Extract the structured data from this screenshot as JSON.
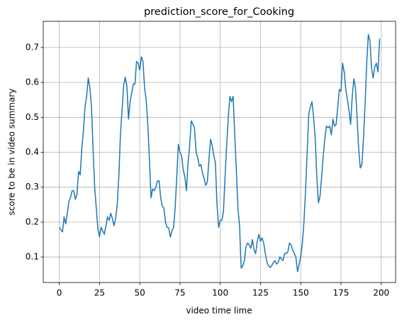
{
  "chart_data": {
    "type": "line",
    "title": "prediction_score_for_Cooking",
    "xlabel": "video time lime",
    "ylabel": "score to be in video summary",
    "x": [
      0,
      1,
      2,
      3,
      4,
      5,
      6,
      7,
      8,
      9,
      10,
      11,
      12,
      13,
      14,
      15,
      16,
      17,
      18,
      19,
      20,
      21,
      22,
      23,
      24,
      25,
      26,
      27,
      28,
      29,
      30,
      31,
      32,
      33,
      34,
      35,
      36,
      37,
      38,
      39,
      40,
      41,
      42,
      43,
      44,
      45,
      46,
      47,
      48,
      49,
      50,
      51,
      52,
      53,
      54,
      55,
      56,
      57,
      58,
      59,
      60,
      61,
      62,
      63,
      64,
      65,
      66,
      67,
      68,
      69,
      70,
      71,
      72,
      73,
      74,
      75,
      76,
      77,
      78,
      79,
      80,
      81,
      82,
      83,
      84,
      85,
      86,
      87,
      88,
      89,
      90,
      91,
      92,
      93,
      94,
      95,
      96,
      97,
      98,
      99,
      100,
      101,
      102,
      103,
      104,
      105,
      106,
      107,
      108,
      109,
      110,
      111,
      112,
      113,
      114,
      115,
      116,
      117,
      118,
      119,
      120,
      121,
      122,
      123,
      124,
      125,
      126,
      127,
      128,
      129,
      130,
      131,
      132,
      133,
      134,
      135,
      136,
      137,
      138,
      139,
      140,
      141,
      142,
      143,
      144,
      145,
      146,
      147,
      148,
      149,
      150,
      151,
      152,
      153,
      154,
      155,
      156,
      157,
      158,
      159,
      160,
      161,
      162,
      163,
      164,
      165,
      166,
      167,
      168,
      169,
      170,
      171,
      172,
      173,
      174,
      175,
      176,
      177,
      178,
      179,
      180,
      181,
      182,
      183,
      184,
      185,
      186,
      187,
      188,
      189,
      190,
      191,
      192,
      193,
      194,
      195,
      196,
      197,
      198,
      199
    ],
    "series": [
      {
        "color": "#1f77b4",
        "values": [
          0.185,
          0.178,
          0.172,
          0.215,
          0.195,
          0.225,
          0.26,
          0.27,
          0.29,
          0.29,
          0.265,
          0.28,
          0.345,
          0.335,
          0.41,
          0.46,
          0.53,
          0.56,
          0.613,
          0.585,
          0.53,
          0.41,
          0.3,
          0.24,
          0.18,
          0.158,
          0.185,
          0.175,
          0.165,
          0.19,
          0.215,
          0.205,
          0.225,
          0.21,
          0.19,
          0.21,
          0.25,
          0.33,
          0.45,
          0.52,
          0.59,
          0.615,
          0.59,
          0.495,
          0.545,
          0.57,
          0.595,
          0.595,
          0.66,
          0.655,
          0.635,
          0.673,
          0.66,
          0.585,
          0.55,
          0.48,
          0.38,
          0.27,
          0.295,
          0.29,
          0.3,
          0.318,
          0.318,
          0.27,
          0.245,
          0.24,
          0.2,
          0.185,
          0.183,
          0.157,
          0.175,
          0.185,
          0.24,
          0.33,
          0.423,
          0.4,
          0.39,
          0.35,
          0.33,
          0.29,
          0.37,
          0.42,
          0.49,
          0.48,
          0.47,
          0.4,
          0.385,
          0.36,
          0.365,
          0.34,
          0.325,
          0.305,
          0.315,
          0.38,
          0.437,
          0.42,
          0.39,
          0.37,
          0.25,
          0.185,
          0.205,
          0.205,
          0.23,
          0.33,
          0.42,
          0.5,
          0.56,
          0.545,
          0.56,
          0.45,
          0.35,
          0.24,
          0.19,
          0.068,
          0.075,
          0.09,
          0.13,
          0.14,
          0.135,
          0.125,
          0.15,
          0.12,
          0.11,
          0.145,
          0.165,
          0.145,
          0.155,
          0.14,
          0.11,
          0.085,
          0.075,
          0.07,
          0.075,
          0.085,
          0.09,
          0.08,
          0.085,
          0.1,
          0.095,
          0.09,
          0.11,
          0.11,
          0.115,
          0.14,
          0.135,
          0.12,
          0.11,
          0.1,
          0.058,
          0.08,
          0.1,
          0.14,
          0.2,
          0.29,
          0.4,
          0.51,
          0.53,
          0.545,
          0.5,
          0.44,
          0.33,
          0.255,
          0.275,
          0.33,
          0.39,
          0.44,
          0.475,
          0.47,
          0.475,
          0.45,
          0.495,
          0.475,
          0.48,
          0.53,
          0.58,
          0.575,
          0.655,
          0.63,
          0.58,
          0.55,
          0.52,
          0.48,
          0.56,
          0.61,
          0.585,
          0.5,
          0.41,
          0.355,
          0.365,
          0.44,
          0.54,
          0.655,
          0.737,
          0.72,
          0.64,
          0.612,
          0.645,
          0.655,
          0.63,
          0.725
        ]
      }
    ],
    "xlim": [
      -9.95,
      208.95
    ],
    "xticks": [
      0,
      25,
      50,
      75,
      100,
      125,
      150,
      175,
      200
    ],
    "ylim": [
      0.027,
      0.775
    ],
    "yticks": [
      0.1,
      0.2,
      0.3,
      0.4,
      0.5,
      0.6,
      0.7
    ],
    "grid": true
  }
}
